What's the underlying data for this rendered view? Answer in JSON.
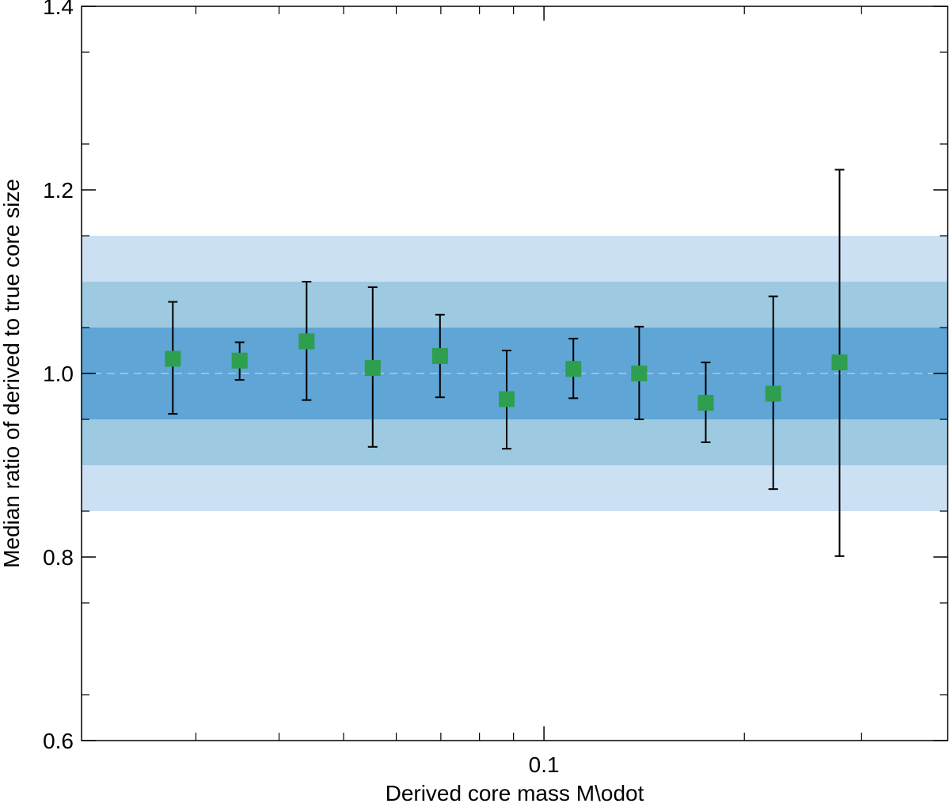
{
  "chart_data": {
    "type": "scatter",
    "title": "",
    "xlabel": "Derived core mass M\\odot",
    "ylabel": "Median ratio of derived to true core size",
    "xscale": "log",
    "xlim": [
      0.0202,
      0.404
    ],
    "ylim": [
      0.6,
      1.4
    ],
    "x_ticks": [
      {
        "value": 0.1,
        "label": "0.1"
      }
    ],
    "x_minor_ticks": [
      0.03,
      0.04,
      0.05,
      0.06,
      0.07,
      0.08,
      0.09,
      0.2,
      0.3
    ],
    "y_ticks": [
      {
        "value": 0.6,
        "label": "0.6"
      },
      {
        "value": 0.8,
        "label": "0.8"
      },
      {
        "value": 1.0,
        "label": "1.0"
      },
      {
        "value": 1.2,
        "label": "1.2"
      },
      {
        "value": 1.4,
        "label": "1.4"
      }
    ],
    "y_minor_step": 0.05,
    "reference_line": 1.0,
    "bands": [
      {
        "low": 0.85,
        "high": 1.15,
        "color": "#cce0f3"
      },
      {
        "low": 0.9,
        "high": 1.1,
        "color": "#9ecae1"
      },
      {
        "low": 0.95,
        "high": 1.05,
        "color": "#5fa5d5"
      }
    ],
    "marker_color": "#2e9e4f",
    "reference_color": "#b8c8d6",
    "series": [
      {
        "name": "median ratio",
        "points": [
          {
            "x": 0.0277,
            "y": 1.016,
            "ylow": 0.956,
            "yhigh": 1.078
          },
          {
            "x": 0.0349,
            "y": 1.014,
            "ylow": 0.993,
            "yhigh": 1.034
          },
          {
            "x": 0.044,
            "y": 1.035,
            "ylow": 0.971,
            "yhigh": 1.1
          },
          {
            "x": 0.0553,
            "y": 1.006,
            "ylow": 0.92,
            "yhigh": 1.094
          },
          {
            "x": 0.0698,
            "y": 1.019,
            "ylow": 0.974,
            "yhigh": 1.064
          },
          {
            "x": 0.0879,
            "y": 0.972,
            "ylow": 0.918,
            "yhigh": 1.025
          },
          {
            "x": 0.1107,
            "y": 1.005,
            "ylow": 0.973,
            "yhigh": 1.038
          },
          {
            "x": 0.139,
            "y": 1.0,
            "ylow": 0.95,
            "yhigh": 1.051
          },
          {
            "x": 0.175,
            "y": 0.968,
            "ylow": 0.925,
            "yhigh": 1.012
          },
          {
            "x": 0.221,
            "y": 0.978,
            "ylow": 0.874,
            "yhigh": 1.084
          },
          {
            "x": 0.278,
            "y": 1.012,
            "ylow": 0.801,
            "yhigh": 1.222
          }
        ]
      }
    ]
  }
}
